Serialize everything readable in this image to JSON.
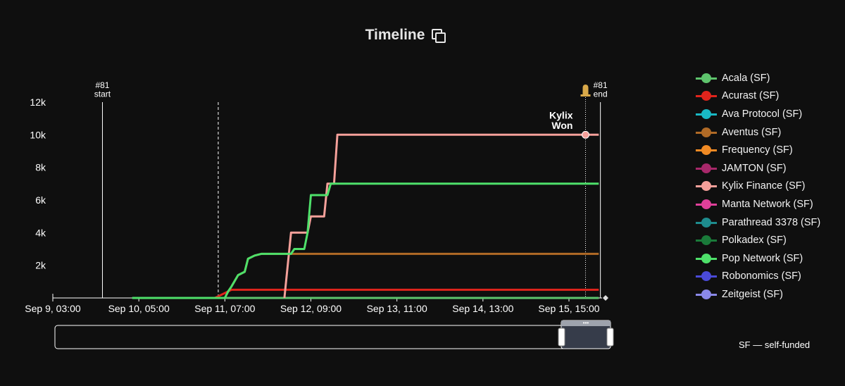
{
  "title": "Timeline",
  "footnote": "SF — self-funded",
  "chart_data": {
    "type": "line",
    "ylim": [
      0,
      12000
    ],
    "y_ticks": [
      2000,
      4000,
      6000,
      8000,
      10000,
      12000
    ],
    "y_tick_labels": [
      "2k",
      "4k",
      "6k",
      "8k",
      "10k",
      "12k"
    ],
    "x_ticks": [
      "2024-09-09T03:00",
      "2024-09-10T05:00",
      "2024-09-11T07:00",
      "2024-09-12T09:00",
      "2024-09-13T11:00",
      "2024-09-14T13:00",
      "2024-09-15T15:00"
    ],
    "x_tick_labels": [
      "Sep 9, 03:00",
      "Sep 10, 05:00",
      "Sep 11, 07:00",
      "Sep 12, 09:00",
      "Sep 13, 11:00",
      "Sep 14, 13:00",
      "Sep 15, 15:00"
    ],
    "xlim": [
      "2024-09-09T03:00",
      "2024-09-16T01:00"
    ],
    "markers": [
      {
        "label": "#81\nstart",
        "x": "2024-09-09T18:00",
        "style": "solid"
      },
      {
        "label": "",
        "x": "2024-09-11T05:00",
        "style": "dashed"
      },
      {
        "label": "",
        "x": "2024-09-15T20:00",
        "style": "dotted",
        "icon": "bell-icon"
      },
      {
        "label": "#81\nend",
        "x": "2024-09-16T00:30",
        "style": "solid"
      }
    ],
    "annotation": {
      "text": "Kylix\nWon",
      "x": "2024-09-15T20:00",
      "y": 10000
    },
    "series": [
      {
        "name": "Acala (SF)",
        "color": "#5ec46d",
        "points": [
          [
            "2024-09-10T03:00",
            0
          ],
          [
            "2024-09-16T00:00",
            0
          ]
        ]
      },
      {
        "name": "Acurast (SF)",
        "color": "#e0241c",
        "points": [
          [
            "2024-09-11T04:00",
            0
          ],
          [
            "2024-09-11T05:00",
            100
          ],
          [
            "2024-09-11T06:00",
            200
          ],
          [
            "2024-09-11T08:00",
            400
          ],
          [
            "2024-09-11T09:00",
            500
          ],
          [
            "2024-09-16T00:00",
            500
          ]
        ]
      },
      {
        "name": "Ava Protocol (SF)",
        "color": "#19b8c4",
        "points": []
      },
      {
        "name": "Aventus (SF)",
        "color": "#b06a26",
        "points": [
          [
            "2024-09-11T07:00",
            0
          ],
          [
            "2024-09-11T08:00",
            400
          ],
          [
            "2024-09-11T09:00",
            700
          ],
          [
            "2024-09-11T11:00",
            1400
          ],
          [
            "2024-09-11T13:00",
            1600
          ],
          [
            "2024-09-11T14:00",
            2400
          ],
          [
            "2024-09-11T16:00",
            2600
          ],
          [
            "2024-09-11T18:00",
            2700
          ],
          [
            "2024-09-16T00:00",
            2700
          ]
        ]
      },
      {
        "name": "Frequency (SF)",
        "color": "#f08a24",
        "points": []
      },
      {
        "name": "JAMTON (SF)",
        "color": "#a8286a",
        "points": []
      },
      {
        "name": "Kylix Finance (SF)",
        "color": "#f5a09a",
        "points": [
          [
            "2024-09-12T01:00",
            0
          ],
          [
            "2024-09-12T03:00",
            4000
          ],
          [
            "2024-09-12T08:00",
            4000
          ],
          [
            "2024-09-12T09:00",
            5000
          ],
          [
            "2024-09-12T13:00",
            5000
          ],
          [
            "2024-09-12T14:00",
            7000
          ],
          [
            "2024-09-12T16:00",
            7000
          ],
          [
            "2024-09-12T17:00",
            10000
          ],
          [
            "2024-09-16T00:00",
            10000
          ]
        ]
      },
      {
        "name": "Manta Network (SF)",
        "color": "#e0409a",
        "points": []
      },
      {
        "name": "Parathread 3378 (SF)",
        "color": "#1e8c8e",
        "points": []
      },
      {
        "name": "Polkadex (SF)",
        "color": "#1a7a3a",
        "points": []
      },
      {
        "name": "Pop Network (SF)",
        "color": "#4ee06a",
        "points": [
          [
            "2024-09-10T03:00",
            0
          ],
          [
            "2024-09-11T07:00",
            0
          ],
          [
            "2024-09-11T08:00",
            400
          ],
          [
            "2024-09-11T09:00",
            700
          ],
          [
            "2024-09-11T11:00",
            1400
          ],
          [
            "2024-09-11T13:00",
            1600
          ],
          [
            "2024-09-11T14:00",
            2400
          ],
          [
            "2024-09-11T16:00",
            2600
          ],
          [
            "2024-09-11T18:00",
            2700
          ],
          [
            "2024-09-12T03:00",
            2700
          ],
          [
            "2024-09-12T04:00",
            3000
          ],
          [
            "2024-09-12T07:00",
            3000
          ],
          [
            "2024-09-12T08:00",
            4000
          ],
          [
            "2024-09-12T09:00",
            6300
          ],
          [
            "2024-09-12T14:00",
            6300
          ],
          [
            "2024-09-12T15:00",
            7000
          ],
          [
            "2024-09-16T00:00",
            7000
          ]
        ]
      },
      {
        "name": "Robonomics (SF)",
        "color": "#4a4ad8",
        "points": []
      },
      {
        "name": "Zeitgeist (SF)",
        "color": "#8a88e8",
        "points": []
      }
    ]
  }
}
